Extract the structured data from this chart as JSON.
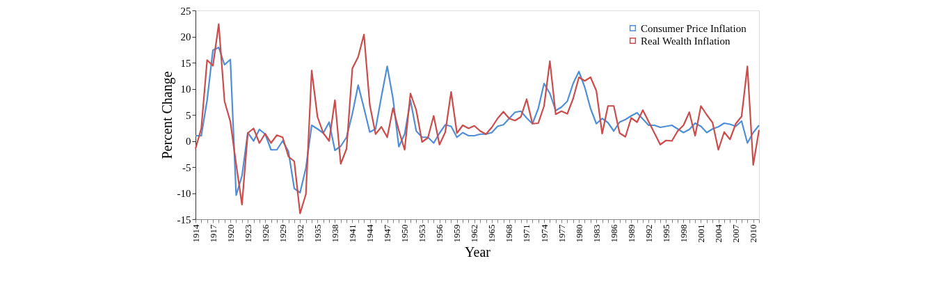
{
  "chart_data": {
    "type": "line",
    "xlabel": "Year",
    "ylabel": "Percent Change",
    "categories": [
      "1914",
      null,
      null,
      "1917",
      null,
      null,
      "1920",
      null,
      null,
      "1923",
      null,
      null,
      "1926",
      null,
      null,
      "1929",
      null,
      null,
      "1932",
      null,
      null,
      "1935",
      null,
      null,
      "1938",
      null,
      null,
      "1941",
      null,
      null,
      "1944",
      null,
      null,
      "1947",
      null,
      null,
      "1950",
      null,
      null,
      "1953",
      null,
      null,
      "1956",
      null,
      null,
      "1959",
      null,
      null,
      "1962",
      null,
      null,
      "1965",
      null,
      null,
      "1968",
      null,
      null,
      "1971",
      null,
      null,
      "1974",
      null,
      null,
      "1977",
      null,
      null,
      "1980",
      null,
      null,
      "1983",
      null,
      null,
      "1986",
      null,
      null,
      "1989",
      null,
      null,
      "1992",
      null,
      null,
      "1995",
      null,
      null,
      "1998",
      null,
      null,
      "2001",
      null,
      null,
      "2004",
      null,
      null,
      "2007",
      null,
      null,
      "2010",
      null
    ],
    "series": [
      {
        "name": "Consumer Price Inflation",
        "color": "#4f8fd6",
        "values": [
          1.0,
          1.0,
          7.8,
          17.4,
          17.9,
          14.6,
          15.6,
          -10.4,
          -6.7,
          1.6,
          0,
          2.2,
          1.3,
          -1.7,
          -1.7,
          0,
          -2.0,
          -9.1,
          -9.9,
          -5.2,
          3.0,
          2.3,
          1.5,
          3.6,
          -1.8,
          -1.0,
          0.7,
          5.2,
          10.7,
          6.3,
          1.7,
          2.3,
          8.5,
          14.3,
          8.1,
          -1.1,
          1.3,
          7.8,
          1.9,
          0.7,
          0.7,
          -0.4,
          1.5,
          3.1,
          2.8,
          0.7,
          1.6,
          1.0,
          1.0,
          1.3,
          1.3,
          1.6,
          2.8,
          3.1,
          4.3,
          5.5,
          5.7,
          4.4,
          3.3,
          6.2,
          11.0,
          9.1,
          5.8,
          6.5,
          7.6,
          11.0,
          13.3,
          10.3,
          6.2,
          3.3,
          4.3,
          3.5,
          1.9,
          3.6,
          4.1,
          4.8,
          5.4,
          4.2,
          3.0,
          3.0,
          2.6,
          2.8,
          3.0,
          2.3,
          1.6,
          2.2,
          3.4,
          2.8,
          1.6,
          2.3,
          2.7,
          3.4,
          3.2,
          2.8,
          3.8,
          -0.4,
          1.6,
          3.0
        ]
      },
      {
        "name": "Real Wealth Inflation",
        "color": "#cc4b4b",
        "values": [
          -1.5,
          2.4,
          15.5,
          14.4,
          22.4,
          7.6,
          3.7,
          -4.5,
          -12.2,
          1.5,
          2.4,
          -0.4,
          1.4,
          -0.4,
          1.1,
          0.7,
          -3.0,
          -3.9,
          -13.9,
          -10.2,
          13.5,
          4.6,
          1.5,
          0,
          7.8,
          -4.4,
          -1.5,
          13.9,
          16.1,
          20.4,
          6.9,
          1.3,
          2.7,
          0.7,
          6.3,
          2.0,
          -1.7,
          9.1,
          5.9,
          -0.2,
          0.6,
          4.8,
          -0.7,
          1.7,
          9.4,
          1.5,
          3.0,
          2.4,
          2.9,
          1.9,
          1.3,
          2.6,
          4.3,
          5.6,
          4.3,
          3.9,
          4.6,
          8.0,
          3.3,
          3.4,
          6.7,
          15.3,
          5.1,
          5.7,
          5.2,
          8.1,
          12.2,
          11.5,
          12.2,
          9.6,
          1.4,
          6.7,
          6.7,
          1.5,
          0.8,
          4.4,
          3.6,
          5.9,
          3.7,
          1.5,
          -0.7,
          0.1,
          0,
          1.9,
          3.0,
          5.5,
          1.0,
          6.7,
          5.0,
          3.5,
          -1.7,
          1.7,
          0.3,
          3.3,
          4.7,
          14.3,
          -4.6,
          2.1
        ]
      }
    ],
    "ylim": [
      -15,
      25
    ],
    "yticks": [
      -15,
      -10,
      -5,
      0,
      5,
      10,
      15,
      20,
      25
    ],
    "grid": false,
    "legend": "top right",
    "line_style": "solid",
    "marker": "none"
  }
}
